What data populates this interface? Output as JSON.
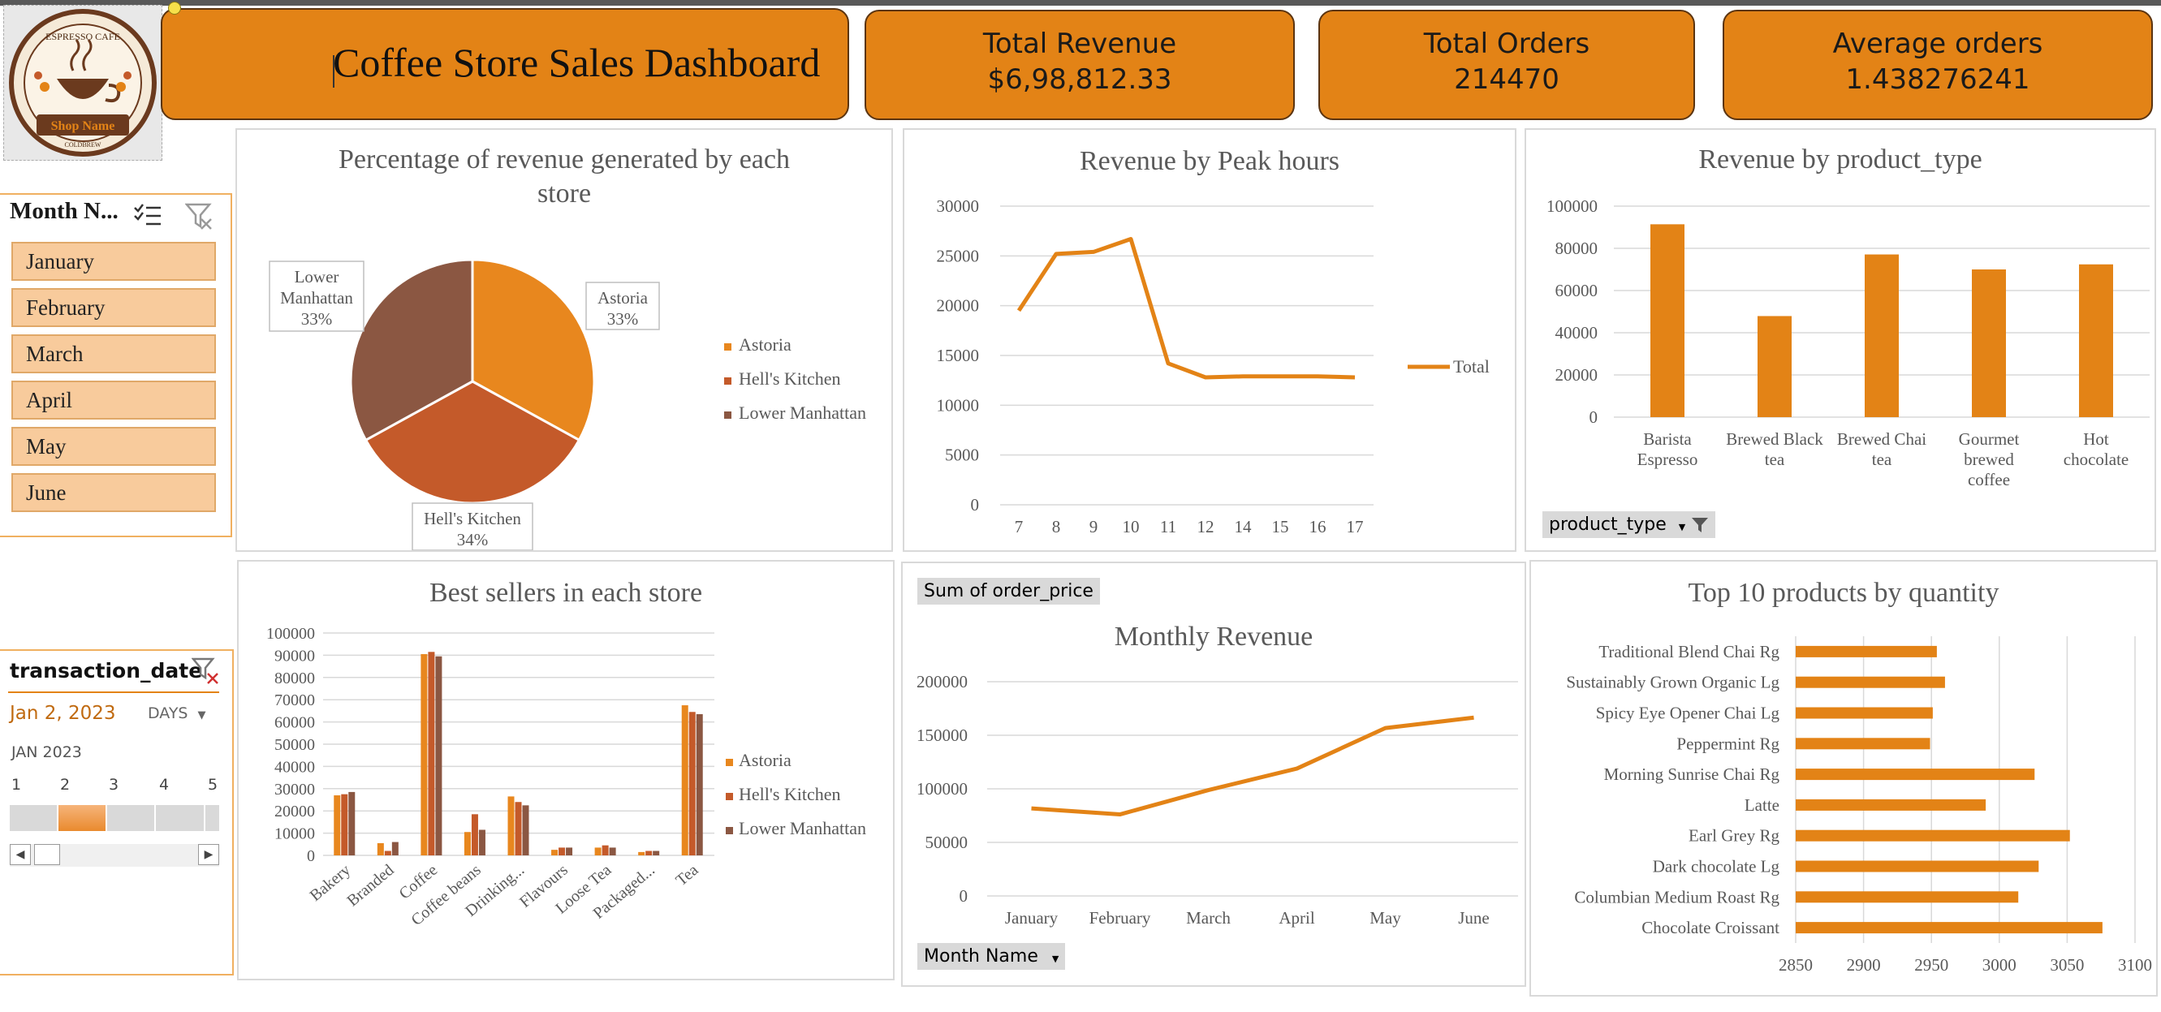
{
  "logo": {
    "top_text": "ESPRESSO CAFE",
    "banner_text": "Shop Name",
    "bottom_text": "COLDBREW"
  },
  "dashboard": {
    "title": "Coffee Store Sales Dashboard"
  },
  "kpis": [
    {
      "label": "Total Revenue",
      "value": "$6,98,812.33"
    },
    {
      "label": "Total Orders",
      "value": "214470"
    },
    {
      "label": "Average orders",
      "value": "1.438276241"
    }
  ],
  "month_slicer": {
    "header": "Month N...",
    "items": [
      "January",
      "February",
      "March",
      "April",
      "May",
      "June"
    ]
  },
  "timeline": {
    "header": "transaction_date",
    "selected": "Jan 2, 2023",
    "level": "DAYS",
    "month_label": "JAN 2023",
    "days": [
      "1",
      "2",
      "3",
      "4",
      "5"
    ],
    "selected_day_index": 1
  },
  "colors": {
    "accent": "#e38316",
    "astoria": "#e8871e",
    "hells_kitchen": "#c45a2a",
    "lower_manhattan": "#8b5742",
    "slicer_item": "#f8cb9c",
    "kpi_border": "#5b3410"
  },
  "icons": {
    "multi_select": "multi-select-icon",
    "clear_filter": "clear-filter-icon",
    "filter": "filter-icon",
    "dropdown": "chevron-down-icon"
  },
  "pivot_buttons": {
    "product_type": "product_type",
    "sum_order_price": "Sum of order_price",
    "month_name": "Month Name"
  },
  "chart_data": [
    {
      "id": "store_pie",
      "type": "pie",
      "title": "Percentage of  revenue generated by each store",
      "title_lines": [
        "Percentage of  revenue generated by each",
        "store"
      ],
      "categories": [
        "Astoria",
        "Hell's Kitchen",
        "Lower Manhattan"
      ],
      "values": [
        33,
        34,
        33
      ],
      "data_labels": [
        "33%",
        "34%",
        "33%"
      ],
      "legend": "right"
    },
    {
      "id": "peak_hours",
      "type": "line",
      "title": "Revenue by Peak hours",
      "x": [
        "7",
        "8",
        "9",
        "10",
        "11",
        "12",
        "14",
        "15",
        "16",
        "17"
      ],
      "series": [
        {
          "name": "Total",
          "values": [
            19500,
            25200,
            25400,
            26700,
            14200,
            12800,
            12900,
            12900,
            12900,
            12800
          ]
        }
      ],
      "ylim": [
        0,
        30000
      ],
      "yticks": [
        "30000",
        "25000",
        "20000",
        "15000",
        "10000",
        "5000",
        "0"
      ],
      "grid": true,
      "legend": "right"
    },
    {
      "id": "product_type",
      "type": "bar",
      "title": "Revenue by product_type",
      "categories": [
        "Barista Espresso",
        "Brewed Black tea",
        "Brewed Chai tea",
        "Gourmet brewed coffee",
        "Hot chocolate"
      ],
      "category_lines": [
        [
          "Barista",
          "Espresso"
        ],
        [
          "Brewed Black",
          "tea"
        ],
        [
          "Brewed Chai",
          "tea"
        ],
        [
          "Gourmet",
          "brewed",
          "coffee"
        ],
        [
          "Hot",
          "chocolate"
        ]
      ],
      "values": [
        91400,
        47900,
        77100,
        70000,
        72400
      ],
      "ylim": [
        0,
        100000
      ],
      "yticks": [
        "100000",
        "80000",
        "60000",
        "40000",
        "20000",
        "0"
      ],
      "grid": true
    },
    {
      "id": "best_sellers",
      "type": "bar",
      "title": "Best sellers in each store",
      "categories": [
        "Bakery",
        "Branded",
        "Coffee",
        "Coffee beans",
        "Drinking...",
        "Flavours",
        "Loose Tea",
        "Packaged...",
        "Tea"
      ],
      "series": [
        {
          "name": "Astoria",
          "values": [
            27000,
            5500,
            90500,
            10500,
            26500,
            2500,
            3500,
            1500,
            67500
          ]
        },
        {
          "name": "Hell's Kitchen",
          "values": [
            27500,
            2000,
            91500,
            18500,
            24000,
            3500,
            4500,
            2000,
            64500
          ]
        },
        {
          "name": "Lower Manhattan",
          "values": [
            28500,
            6000,
            89500,
            11500,
            22500,
            3500,
            3500,
            2000,
            63500
          ]
        }
      ],
      "ylim": [
        0,
        100000
      ],
      "yticks": [
        "100000",
        "90000",
        "80000",
        "70000",
        "60000",
        "50000",
        "40000",
        "30000",
        "20000",
        "10000",
        "0"
      ],
      "grid": true,
      "legend": "right"
    },
    {
      "id": "monthly_revenue",
      "type": "line",
      "title": "Monthly Revenue",
      "x": [
        "January",
        "February",
        "March",
        "April",
        "May",
        "June"
      ],
      "series": [
        {
          "name": "Sum of order_price",
          "values": [
            81700,
            76100,
            98800,
            118900,
            156700,
            166500
          ]
        }
      ],
      "ylim": [
        0,
        200000
      ],
      "yticks": [
        "200000",
        "150000",
        "100000",
        "50000",
        "0"
      ],
      "grid": true
    },
    {
      "id": "top10_quantity",
      "type": "bar",
      "orientation": "horizontal",
      "title": "Top 10 products by quantity",
      "categories": [
        "Traditional Blend Chai Rg",
        "Sustainably Grown Organic Lg",
        "Spicy Eye Opener Chai Lg",
        "Peppermint Rg",
        "Morning Sunrise Chai Rg",
        "Latte",
        "Earl Grey Rg",
        "Dark chocolate Lg",
        "Columbian Medium Roast Rg",
        "Chocolate Croissant"
      ],
      "values": [
        2954,
        2960,
        2951,
        2949,
        3026,
        2990,
        3052,
        3029,
        3014,
        3076
      ],
      "xlim": [
        2850,
        3100
      ],
      "xticks": [
        "2850",
        "2900",
        "2950",
        "3000",
        "3050",
        "3100"
      ],
      "grid": true
    }
  ]
}
